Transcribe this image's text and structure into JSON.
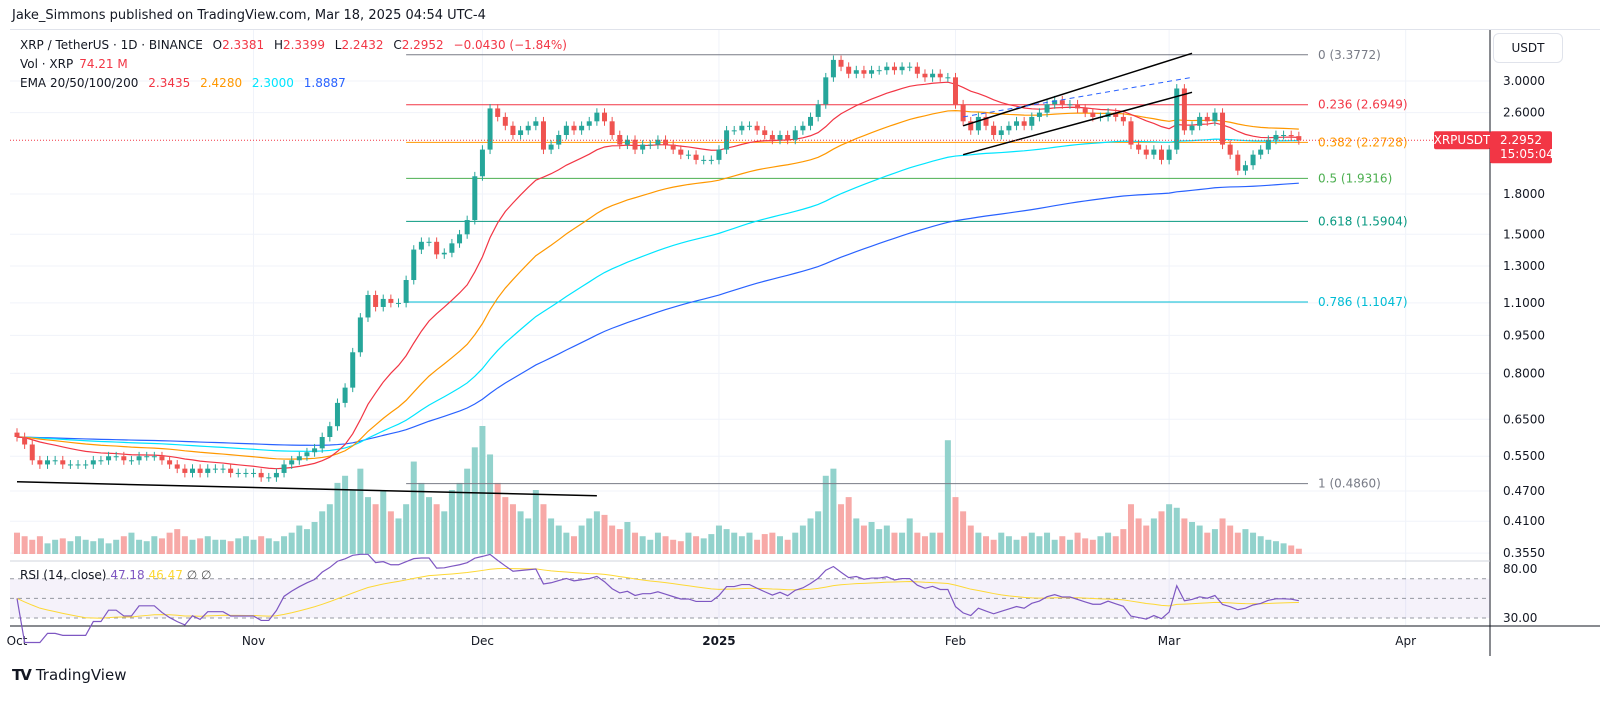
{
  "header": {
    "published": "Jake_Simmons published on TradingView.com, Mar 18, 2025 04:54 UTC-4"
  },
  "legend": {
    "symbol": "XRP / TetherUS · 1D · BINANCE",
    "o_label": "O",
    "o": "2.3381",
    "h_label": "H",
    "h": "2.3399",
    "l_label": "L",
    "l": "2.2432",
    "c_label": "C",
    "c": "2.2952",
    "change": "−0.0430 (−1.84%)",
    "vol_label": "Vol · XRP",
    "vol": "74.21 M",
    "ema_label": "EMA 20/50/100/200",
    "ema20": "2.3435",
    "ema50": "2.4280",
    "ema100": "2.3000",
    "ema200": "1.8887"
  },
  "rsi_legend": {
    "label": "RSI (14, close)",
    "rsi": "47.18",
    "ma": "46.47",
    "v1": "∅",
    "v2": "∅"
  },
  "axis": {
    "currency": "USDT",
    "price_ticks": [
      "3.0000",
      "2.6000",
      "1.8000",
      "1.5000",
      "1.3000",
      "1.1000",
      "0.9500",
      "0.8000",
      "0.6500",
      "0.5500",
      "0.4700",
      "0.4100",
      "0.3550"
    ],
    "rsi_ticks": [
      "80.00",
      "30.00"
    ],
    "time_ticks": [
      "Oct",
      "Nov",
      "Dec",
      "2025",
      "Feb",
      "Mar",
      "Apr"
    ]
  },
  "price_label": {
    "symbol": "XRPUSDT",
    "price": "2.2952",
    "countdown": "15:05:04"
  },
  "footer": {
    "brand": "TradingView"
  },
  "colors": {
    "up": "#26a69a",
    "down": "#ef5350",
    "ema20": "#f23645",
    "ema50": "#ff9800",
    "ema100": "#00e5ff",
    "ema200": "#2962ff",
    "rsi": "#7e57c2",
    "rsi_ma": "#fdd835"
  },
  "chart_data": {
    "type": "candlestick",
    "scale": "log",
    "ylim": [
      0.355,
      3.4
    ],
    "start_date": "2024-10-01",
    "interval": "1D",
    "closes": [
      0.6,
      0.58,
      0.54,
      0.53,
      0.54,
      0.54,
      0.53,
      0.53,
      0.53,
      0.53,
      0.54,
      0.54,
      0.55,
      0.55,
      0.54,
      0.54,
      0.55,
      0.55,
      0.55,
      0.54,
      0.53,
      0.52,
      0.51,
      0.52,
      0.51,
      0.52,
      0.52,
      0.52,
      0.51,
      0.51,
      0.51,
      0.51,
      0.5,
      0.5,
      0.51,
      0.53,
      0.54,
      0.55,
      0.56,
      0.57,
      0.6,
      0.63,
      0.7,
      0.75,
      0.88,
      1.03,
      1.14,
      1.08,
      1.12,
      1.1,
      1.1,
      1.22,
      1.4,
      1.45,
      1.45,
      1.37,
      1.38,
      1.44,
      1.5,
      1.6,
      1.95,
      2.2,
      2.65,
      2.55,
      2.45,
      2.35,
      2.4,
      2.45,
      2.5,
      2.2,
      2.25,
      2.35,
      2.45,
      2.4,
      2.45,
      2.5,
      2.6,
      2.5,
      2.35,
      2.25,
      2.3,
      2.2,
      2.25,
      2.25,
      2.3,
      2.25,
      2.2,
      2.15,
      2.15,
      2.1,
      2.1,
      2.1,
      2.2,
      2.4,
      2.4,
      2.45,
      2.45,
      2.4,
      2.35,
      2.3,
      2.35,
      2.3,
      2.4,
      2.45,
      2.55,
      2.7,
      3.05,
      3.3,
      3.2,
      3.1,
      3.15,
      3.1,
      3.15,
      3.15,
      3.2,
      3.15,
      3.2,
      3.2,
      3.1,
      3.05,
      3.1,
      3.05,
      3.05,
      2.7,
      2.5,
      2.4,
      2.55,
      2.45,
      2.35,
      2.4,
      2.45,
      2.5,
      2.45,
      2.55,
      2.6,
      2.7,
      2.75,
      2.7,
      2.7,
      2.65,
      2.6,
      2.55,
      2.55,
      2.6,
      2.55,
      2.5,
      2.25,
      2.2,
      2.15,
      2.2,
      2.1,
      2.2,
      2.9,
      2.4,
      2.45,
      2.55,
      2.5,
      2.6,
      2.25,
      2.15,
      2.0,
      2.05,
      2.15,
      2.2,
      2.3,
      2.35,
      2.35,
      2.3381,
      2.2952
    ],
    "volumes_m": [
      300,
      250,
      200,
      250,
      150,
      200,
      220,
      180,
      250,
      200,
      180,
      220,
      150,
      200,
      250,
      300,
      200,
      180,
      250,
      220,
      300,
      350,
      250,
      200,
      220,
      250,
      200,
      200,
      180,
      220,
      250,
      200,
      250,
      220,
      180,
      250,
      300,
      400,
      350,
      450,
      600,
      700,
      1000,
      1100,
      900,
      1200,
      800,
      700,
      900,
      600,
      500,
      700,
      1300,
      1000,
      800,
      700,
      600,
      900,
      1000,
      1200,
      1500,
      1800,
      1400,
      1000,
      800,
      700,
      600,
      500,
      900,
      700,
      500,
      400,
      300,
      250,
      400,
      500,
      600,
      550,
      400,
      350,
      450,
      300,
      250,
      200,
      300,
      250,
      200,
      180,
      300,
      250,
      220,
      280,
      400,
      350,
      300,
      250,
      300,
      200,
      280,
      300,
      250,
      200,
      300,
      400,
      500,
      600,
      1100,
      1200,
      700,
      800,
      500,
      400,
      450,
      350,
      400,
      300,
      300,
      500,
      300,
      250,
      300,
      300,
      1600,
      800,
      600,
      400,
      300,
      250,
      200,
      300,
      250,
      200,
      250,
      300,
      250,
      300,
      200,
      250,
      200,
      300,
      220,
      200,
      250,
      300,
      250,
      350,
      700,
      500,
      400,
      500,
      600,
      700,
      650,
      500,
      450,
      400,
      300,
      350,
      500,
      400,
      300,
      350,
      300,
      250,
      200,
      180,
      150,
      120,
      74.21
    ],
    "fib_levels": [
      {
        "level": "0",
        "price": 3.3772,
        "label": "0 (3.3772)",
        "color": "#787b86"
      },
      {
        "level": "0.236",
        "price": 2.6949,
        "label": "0.236 (2.6949)",
        "color": "#f23645"
      },
      {
        "level": "0.382",
        "price": 2.2728,
        "label": "0.382 (2.2728)",
        "color": "#ff9800"
      },
      {
        "level": "0.5",
        "price": 1.9316,
        "label": "0.5 (1.9316)",
        "color": "#4caf50"
      },
      {
        "level": "0.618",
        "price": 1.5904,
        "label": "0.618 (1.5904)",
        "color": "#089981"
      },
      {
        "level": "0.786",
        "price": 1.1047,
        "label": "0.786 (1.1047)",
        "color": "#00bcd4"
      },
      {
        "level": "1",
        "price": 0.486,
        "label": "1 (0.4860)",
        "color": "#787b86"
      }
    ],
    "fib_start_date": "2024-11-21",
    "trendlines": [
      {
        "from": [
          "2024-10-01",
          0.49
        ],
        "to": [
          "2024-12-16",
          0.46
        ],
        "color": "#000000"
      },
      {
        "from": [
          "2025-02-02",
          2.45
        ],
        "to": [
          "2025-03-04",
          3.4
        ],
        "color": "#000000"
      },
      {
        "from": [
          "2025-02-02",
          2.15
        ],
        "to": [
          "2025-03-04",
          2.85
        ],
        "color": "#000000"
      },
      {
        "from": [
          "2025-02-02",
          2.55
        ],
        "to": [
          "2025-03-04",
          3.05
        ],
        "color": "#2962ff",
        "dashed": true
      }
    ]
  }
}
